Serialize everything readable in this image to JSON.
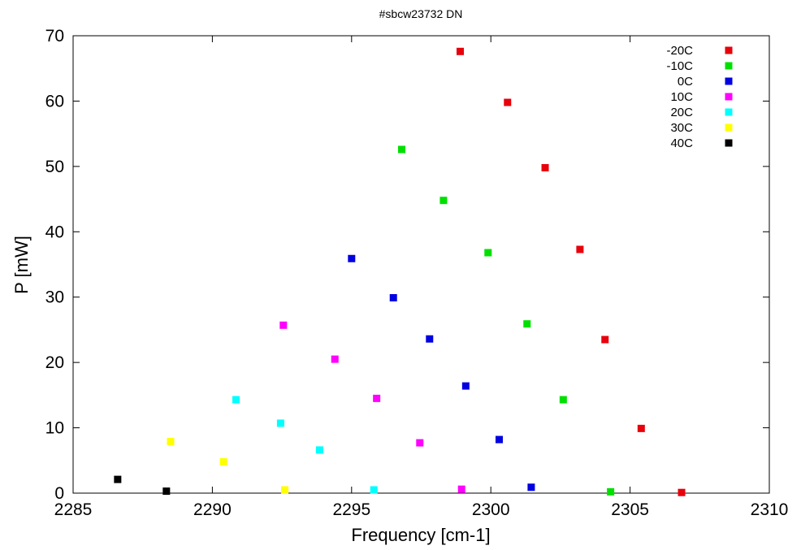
{
  "chart_data": {
    "type": "scatter",
    "title": "#sbcw23732 DN",
    "xlabel": "Frequency [cm-1]",
    "ylabel": "P [mW]",
    "xlim": [
      2285,
      2310
    ],
    "ylim": [
      0,
      70
    ],
    "xticks": [
      2285,
      2290,
      2295,
      2300,
      2305,
      2310
    ],
    "yticks": [
      0,
      10,
      20,
      30,
      40,
      50,
      60,
      70
    ],
    "grid": false,
    "legend_position": "top-right",
    "series": [
      {
        "name": "-20C",
        "color": "#e8000b",
        "points": [
          [
            2298.9,
            67.6
          ],
          [
            2300.6,
            59.8
          ],
          [
            2301.95,
            49.8
          ],
          [
            2303.2,
            37.3
          ],
          [
            2304.1,
            23.5
          ],
          [
            2305.4,
            9.9
          ],
          [
            2306.85,
            0.1
          ]
        ]
      },
      {
        "name": "-10C",
        "color": "#00e000",
        "points": [
          [
            2296.8,
            52.6
          ],
          [
            2298.3,
            44.8
          ],
          [
            2299.9,
            36.8
          ],
          [
            2301.3,
            25.9
          ],
          [
            2302.6,
            14.3
          ],
          [
            2304.3,
            0.2
          ]
        ]
      },
      {
        "name": "0C",
        "color": "#0000e0",
        "points": [
          [
            2295.0,
            35.9
          ],
          [
            2296.5,
            29.9
          ],
          [
            2297.8,
            23.6
          ],
          [
            2299.1,
            16.4
          ],
          [
            2300.3,
            8.2
          ],
          [
            2301.45,
            0.9
          ]
        ]
      },
      {
        "name": "10C",
        "color": "#ff00ff",
        "points": [
          [
            2292.55,
            25.7
          ],
          [
            2294.4,
            20.5
          ],
          [
            2295.9,
            14.5
          ],
          [
            2297.45,
            7.7
          ],
          [
            2298.95,
            0.6
          ]
        ]
      },
      {
        "name": "20C",
        "color": "#00ffff",
        "points": [
          [
            2290.85,
            14.3
          ],
          [
            2292.45,
            10.7
          ],
          [
            2293.85,
            6.6
          ],
          [
            2295.8,
            0.5
          ]
        ]
      },
      {
        "name": "30C",
        "color": "#ffff00",
        "points": [
          [
            2288.5,
            7.9
          ],
          [
            2290.4,
            4.8
          ],
          [
            2292.6,
            0.5
          ]
        ]
      },
      {
        "name": "40C",
        "color": "#000000",
        "points": [
          [
            2286.6,
            2.1
          ],
          [
            2288.35,
            0.3
          ]
        ]
      }
    ]
  }
}
